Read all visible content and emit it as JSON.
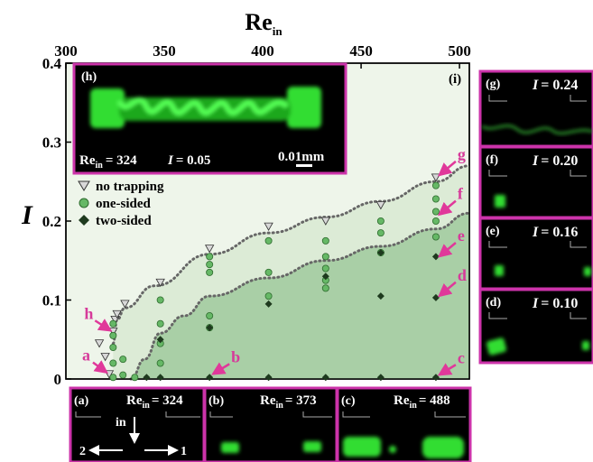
{
  "colors": {
    "panel_border": "#cc33aa",
    "arrow": "#e0389a",
    "label_pink": "#d63a9a",
    "region_light": "#eef5ea",
    "region_mid": "#dcebd6",
    "region_dark": "#a9cfa6",
    "marker_no_trap": "#d8d8d8",
    "marker_one_sided": "#66b866",
    "marker_two_sided": "#1e3a1e",
    "glow": "#33dd33"
  },
  "axes": {
    "x_title_main": "Re",
    "x_title_sub": "in",
    "y_title": "I",
    "x_ticks": [
      "300",
      "350",
      "400",
      "450",
      "500"
    ],
    "y_ticks": [
      "0",
      "0.1",
      "0.2",
      "0.3",
      "0.4"
    ]
  },
  "legend": {
    "no_trapping": "no trapping",
    "one_sided": "one-sided",
    "two_sided": "two-sided"
  },
  "panel_i_label": "(i)",
  "inset_h": {
    "label": "(h)",
    "re_main": "Re",
    "re_sub": "in",
    "re_value": "= 324",
    "i_symbol": "I",
    "i_value": "= 0.05",
    "scale_bar": "0.01mm"
  },
  "point_labels": [
    "a",
    "b",
    "c",
    "d",
    "e",
    "f",
    "g",
    "h"
  ],
  "side_panels": [
    {
      "label": "(g)",
      "i_symbol": "I",
      "value": "= 0.24"
    },
    {
      "label": "(f)",
      "i_symbol": "I",
      "value": "= 0.20"
    },
    {
      "label": "(e)",
      "i_symbol": "I",
      "value": "= 0.16"
    },
    {
      "label": "(d)",
      "i_symbol": "I",
      "value": "= 0.10"
    }
  ],
  "bottom_panels": [
    {
      "label": "(a)",
      "re_main": "Re",
      "re_sub": "in",
      "value": "= 324"
    },
    {
      "label": "(b)",
      "re_main": "Re",
      "re_sub": "in",
      "value": "= 373"
    },
    {
      "label": "(c)",
      "re_main": "Re",
      "re_sub": "in",
      "value": "= 488"
    }
  ],
  "flow_labels": {
    "inlet": "in",
    "outlet_2": "2",
    "outlet_1": "1"
  },
  "chart_data": {
    "type": "scatter",
    "xlabel": "Re_in",
    "ylabel": "I",
    "xlim": [
      300,
      505
    ],
    "ylim": [
      0,
      0.4
    ],
    "x_tick_position": "top",
    "series": [
      {
        "name": "no trapping",
        "marker": "triangle-down",
        "points": [
          [
            317,
            0.045
          ],
          [
            320,
            0.028
          ],
          [
            322,
            0.006
          ],
          [
            324,
            0.06
          ],
          [
            325,
            0.075
          ],
          [
            326,
            0.082
          ],
          [
            330,
            0.095
          ],
          [
            348,
            0.122
          ],
          [
            373,
            0.165
          ],
          [
            403,
            0.193
          ],
          [
            432,
            0.2
          ],
          [
            460,
            0.22
          ],
          [
            488,
            0.255
          ]
        ]
      },
      {
        "name": "one-sided",
        "marker": "circle",
        "points": [
          [
            324,
            0.002
          ],
          [
            324,
            0.02
          ],
          [
            324,
            0.04
          ],
          [
            324,
            0.055
          ],
          [
            324,
            0.07
          ],
          [
            329,
            0.005
          ],
          [
            329,
            0.025
          ],
          [
            335,
            0.002
          ],
          [
            348,
            0.02
          ],
          [
            348,
            0.045
          ],
          [
            348,
            0.07
          ],
          [
            348,
            0.1
          ],
          [
            373,
            0.065
          ],
          [
            373,
            0.08
          ],
          [
            373,
            0.135
          ],
          [
            373,
            0.145
          ],
          [
            373,
            0.155
          ],
          [
            403,
            0.105
          ],
          [
            403,
            0.135
          ],
          [
            403,
            0.175
          ],
          [
            432,
            0.115
          ],
          [
            432,
            0.125
          ],
          [
            432,
            0.14
          ],
          [
            432,
            0.155
          ],
          [
            432,
            0.175
          ],
          [
            460,
            0.16
          ],
          [
            460,
            0.185
          ],
          [
            460,
            0.2
          ],
          [
            488,
            0.18
          ],
          [
            488,
            0.2
          ],
          [
            488,
            0.212
          ],
          [
            488,
            0.228
          ],
          [
            488,
            0.245
          ]
        ]
      },
      {
        "name": "two-sided",
        "marker": "diamond",
        "points": [
          [
            341,
            0.002
          ],
          [
            348,
            0.002
          ],
          [
            348,
            0.05
          ],
          [
            373,
            0.002
          ],
          [
            373,
            0.065
          ],
          [
            403,
            0.002
          ],
          [
            403,
            0.095
          ],
          [
            432,
            0.002
          ],
          [
            432,
            0.13
          ],
          [
            460,
            0.002
          ],
          [
            460,
            0.105
          ],
          [
            460,
            0.16
          ],
          [
            488,
            0.002
          ],
          [
            488,
            0.103
          ],
          [
            488,
            0.155
          ]
        ]
      }
    ],
    "boundaries": [
      {
        "points": [
          [
            324,
            0.045
          ],
          [
            326,
            0.075
          ],
          [
            330,
            0.09
          ],
          [
            345,
            0.118
          ],
          [
            373,
            0.158
          ],
          [
            403,
            0.185
          ],
          [
            432,
            0.205
          ],
          [
            460,
            0.225
          ],
          [
            488,
            0.25
          ],
          [
            505,
            0.27
          ]
        ]
      },
      {
        "points": [
          [
            333,
            0.0
          ],
          [
            340,
            0.025
          ],
          [
            348,
            0.058
          ],
          [
            360,
            0.08
          ],
          [
            373,
            0.105
          ],
          [
            403,
            0.128
          ],
          [
            432,
            0.15
          ],
          [
            460,
            0.168
          ],
          [
            488,
            0.19
          ],
          [
            505,
            0.21
          ]
        ]
      }
    ],
    "point_label_targets": {
      "a": [
        322,
        0.005
      ],
      "b": [
        373,
        0.003
      ],
      "c": [
        488,
        0.002
      ],
      "d": [
        488,
        0.102
      ],
      "e": [
        488,
        0.152
      ],
      "f": [
        488,
        0.205
      ],
      "g": [
        488,
        0.255
      ],
      "h": [
        324,
        0.058
      ]
    }
  }
}
